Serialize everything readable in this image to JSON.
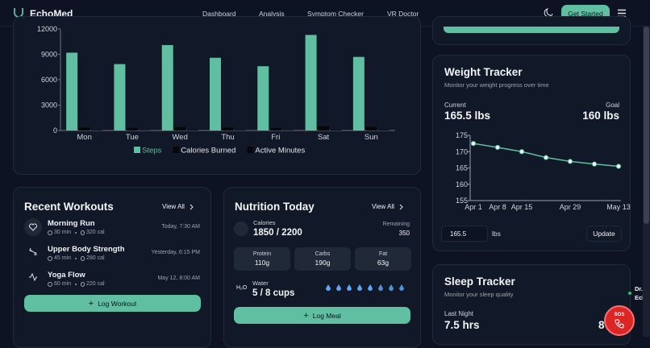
{
  "nav": {
    "brand": "EchoMed",
    "links": [
      "Dashboard",
      "Analysis",
      "Symptom Checker",
      "VR Doctor"
    ],
    "cta": "Get Started"
  },
  "chart_data": [
    {
      "type": "bar",
      "categories": [
        "Mon",
        "Tue",
        "Wed",
        "Thu",
        "Fri",
        "Sat",
        "Sun"
      ],
      "series": [
        {
          "name": "Steps",
          "color": "#5fbfa0",
          "values": [
            9200,
            7850,
            10100,
            8600,
            7600,
            11300,
            8700
          ]
        },
        {
          "name": "Calories Burned",
          "color": "#070707",
          "values": [
            350,
            300,
            400,
            350,
            300,
            500,
            420
          ]
        },
        {
          "name": "Active Minutes",
          "color": "#070707",
          "values": [
            45,
            30,
            60,
            40,
            35,
            75,
            50
          ]
        }
      ],
      "ylim": [
        0,
        12000
      ],
      "yticks": [
        0,
        3000,
        6000,
        9000,
        12000
      ],
      "legend": "bottom",
      "grid": false
    },
    {
      "type": "line",
      "title": "Weight Tracker",
      "subtitle": "Monitor your weight progress over time",
      "categories": [
        "Apr 1",
        "Apr 8",
        "Apr 15",
        null,
        "Apr 29",
        null,
        "May 13"
      ],
      "values": [
        172.5,
        171.3,
        170,
        168.2,
        167,
        166.2,
        165.5
      ],
      "color": "#5fbfa0",
      "ylim": [
        155,
        175
      ],
      "yticks": [
        155,
        160,
        165,
        170,
        175
      ],
      "grid": false
    }
  ],
  "weight": {
    "current_label": "Current",
    "current": "165.5 lbs",
    "goal_label": "Goal",
    "goal": "160 lbs",
    "input": "165.5",
    "unit": "lbs",
    "button": "Update"
  },
  "workouts": {
    "title": "Recent Workouts",
    "view_all": "View All",
    "items": [
      {
        "name": "Morning Run",
        "duration": "30 min",
        "calories": "320 cal",
        "time": "Today, 7:30 AM"
      },
      {
        "name": "Upper Body Strength",
        "duration": "45 min",
        "calories": "280 cal",
        "time": "Yesterday, 6:15 PM"
      },
      {
        "name": "Yoga Flow",
        "duration": "60 min",
        "calories": "220 cal",
        "time": "May 12, 8:00 AM"
      }
    ],
    "button": "Log Workout"
  },
  "nutrition": {
    "title": "Nutrition Today",
    "view_all": "View All",
    "calories_label": "Calories",
    "calories": "1850 / 2200",
    "remaining_label": "Remaining",
    "remaining": "350",
    "macros": [
      {
        "label": "Protein",
        "value": "110g"
      },
      {
        "label": "Carbs",
        "value": "190g"
      },
      {
        "label": "Fat",
        "value": "63g"
      }
    ],
    "water_icon": "H₂O",
    "water_label": "Water",
    "water": "5 / 8 cups",
    "button": "Log Meal"
  },
  "sleep": {
    "title": "Sleep Tracker",
    "subtitle": "Monitor your sleep quality",
    "last_night_label": "Last Night",
    "last_night": "7.5 hrs",
    "goal": "8"
  },
  "sos": "SOS",
  "doctor": [
    "Dr.",
    "Ech"
  ]
}
